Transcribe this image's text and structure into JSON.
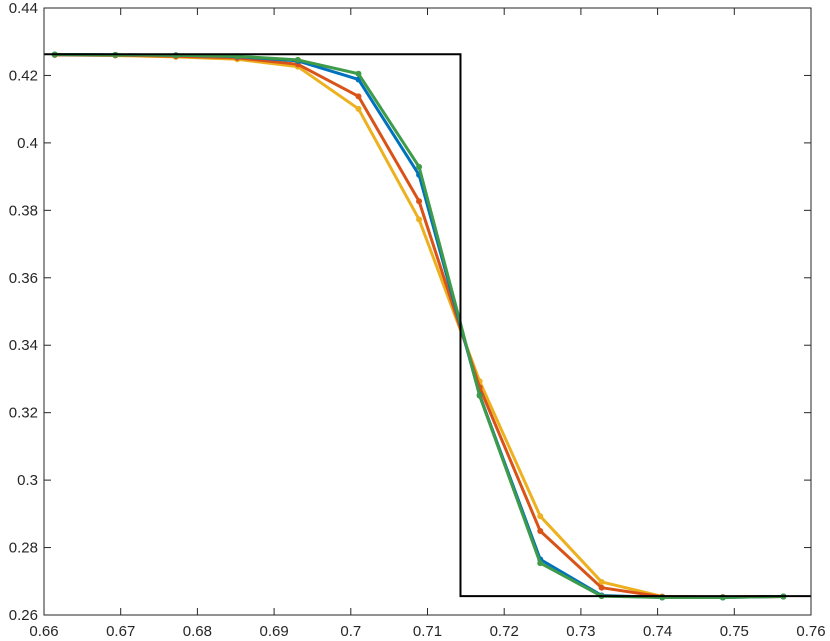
{
  "chart_data": {
    "type": "line",
    "title": "",
    "xlabel": "",
    "ylabel": "",
    "xlim": [
      0.66,
      0.76
    ],
    "ylim": [
      0.26,
      0.44
    ],
    "grid": false,
    "x_ticks": [
      "0.66",
      "0.67",
      "0.68",
      "0.69",
      "0.7",
      "0.71",
      "0.72",
      "0.73",
      "0.74",
      "0.75",
      "0.76"
    ],
    "y_ticks": [
      "0.26",
      "0.28",
      "0.3",
      "0.32",
      "0.34",
      "0.36",
      "0.38",
      "0.4",
      "0.42",
      "0.44"
    ],
    "reference": {
      "color": "#000000",
      "points": [
        [
          0.66,
          0.4263
        ],
        [
          0.7143,
          0.4263
        ],
        [
          0.7143,
          0.2656
        ],
        [
          0.76,
          0.2656
        ]
      ]
    },
    "series": [
      {
        "color": "#EDB120",
        "x": [
          0.6614,
          0.6693,
          0.6772,
          0.6852,
          0.6931,
          0.701,
          0.7089,
          0.7168,
          0.7247,
          0.7327,
          0.7406,
          0.7485,
          0.7564
        ],
        "values": [
          0.4261,
          0.4259,
          0.4255,
          0.4248,
          0.4226,
          0.4101,
          0.3773,
          0.3293,
          0.2893,
          0.2698,
          0.2655,
          0.2653,
          0.2655
        ]
      },
      {
        "color": "#D95319",
        "x": [
          0.6614,
          0.6693,
          0.6772,
          0.6852,
          0.6931,
          0.701,
          0.7089,
          0.7168,
          0.7247,
          0.7327,
          0.7406,
          0.7485,
          0.7564
        ],
        "values": [
          0.4261,
          0.426,
          0.4257,
          0.4252,
          0.4233,
          0.4138,
          0.3827,
          0.3275,
          0.2849,
          0.2681,
          0.2654,
          0.2653,
          0.2655
        ]
      },
      {
        "color": "#0072BD",
        "x": [
          0.6614,
          0.6693,
          0.6772,
          0.6852,
          0.6931,
          0.701,
          0.7089,
          0.7168,
          0.7247,
          0.7327,
          0.7406,
          0.7485,
          0.7564
        ],
        "values": [
          0.4262,
          0.4261,
          0.426,
          0.4256,
          0.4243,
          0.4188,
          0.3905,
          0.3252,
          0.2765,
          0.2658,
          0.2652,
          0.2652,
          0.2655
        ]
      },
      {
        "color": "#3E9B4A",
        "x": [
          0.6614,
          0.6693,
          0.6772,
          0.6852,
          0.6931,
          0.701,
          0.7089,
          0.7168,
          0.7247,
          0.7327,
          0.7406,
          0.7485,
          0.7564
        ],
        "values": [
          0.4262,
          0.4261,
          0.426,
          0.4257,
          0.4246,
          0.4205,
          0.3929,
          0.325,
          0.2754,
          0.2656,
          0.2652,
          0.2652,
          0.2655
        ]
      }
    ]
  }
}
